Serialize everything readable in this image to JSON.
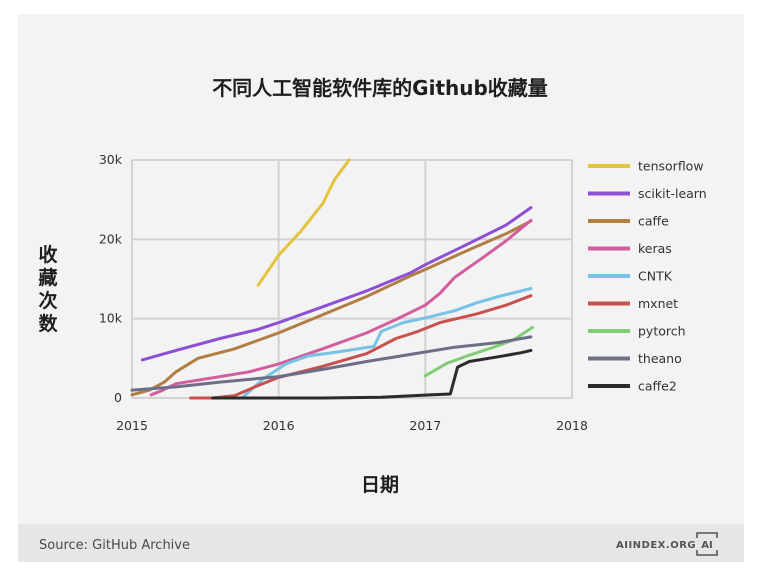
{
  "header": {
    "title": "不同人工智能软件库的Github收藏量"
  },
  "footer": {
    "source": "Source: GitHub Archive",
    "brand": "AIINDEX.ORG",
    "logo_text": "AI"
  },
  "chart_data": {
    "type": "line",
    "title": "不同人工智能软件库的Github收藏量",
    "xlabel": "日期",
    "ylabel": "收藏次数",
    "xlim": [
      2015,
      2018
    ],
    "ylim": [
      0,
      30000
    ],
    "x_ticks": [
      "2015",
      "2016",
      "2017",
      "2018"
    ],
    "y_ticks": [
      "0",
      "10k",
      "20k",
      "30k"
    ],
    "grid": true,
    "legend_position": "right",
    "series": [
      {
        "name": "tensorflow",
        "color": "#e3c43d",
        "x": [
          2015.86,
          2016.0,
          2016.15,
          2016.3,
          2016.38,
          2016.48
        ],
        "y": [
          14200,
          18000,
          21000,
          24500,
          27500,
          30000
        ]
      },
      {
        "name": "scikit-learn",
        "color": "#8d4fd6",
        "x": [
          2015.07,
          2015.3,
          2015.6,
          2015.85,
          2016.0,
          2016.3,
          2016.6,
          2016.9,
          2017.0,
          2017.3,
          2017.55,
          2017.72
        ],
        "y": [
          4800,
          6000,
          7500,
          8600,
          9500,
          11500,
          13500,
          15800,
          16800,
          19500,
          21800,
          24000
        ]
      },
      {
        "name": "caffe",
        "color": "#b07d43",
        "x": [
          2015.0,
          2015.12,
          2015.22,
          2015.3,
          2015.45,
          2015.7,
          2016.0,
          2016.3,
          2016.6,
          2016.9,
          2017.0,
          2017.3,
          2017.55,
          2017.72
        ],
        "y": [
          400,
          1000,
          2000,
          3300,
          5000,
          6200,
          8200,
          10500,
          12800,
          15400,
          16200,
          18700,
          20700,
          22300
        ]
      },
      {
        "name": "keras",
        "color": "#d35e9e",
        "x": [
          2015.13,
          2015.2,
          2015.3,
          2015.6,
          2015.8,
          2016.0,
          2016.3,
          2016.6,
          2016.8,
          2017.0,
          2017.1,
          2017.2,
          2017.4,
          2017.55,
          2017.72
        ],
        "y": [
          400,
          900,
          1800,
          2700,
          3300,
          4300,
          6200,
          8200,
          9900,
          11700,
          13200,
          15200,
          17800,
          19800,
          22400
        ]
      },
      {
        "name": "CNTK",
        "color": "#76c3e6",
        "x": [
          2015.75,
          2015.9,
          2016.05,
          2016.2,
          2016.4,
          2016.65,
          2016.7,
          2016.85,
          2017.0,
          2017.2,
          2017.35,
          2017.5,
          2017.72
        ],
        "y": [
          0,
          2500,
          4300,
          5300,
          5800,
          6500,
          8400,
          9500,
          10100,
          11000,
          12000,
          12800,
          13800
        ]
      },
      {
        "name": "mxnet",
        "color": "#c9514d",
        "x": [
          2015.4,
          2015.55,
          2015.7,
          2015.85,
          2016.0,
          2016.3,
          2016.6,
          2016.8,
          2016.95,
          2017.1,
          2017.35,
          2017.55,
          2017.72
        ],
        "y": [
          0,
          0,
          300,
          1500,
          2600,
          4000,
          5600,
          7500,
          8400,
          9500,
          10600,
          11700,
          12900
        ]
      },
      {
        "name": "pytorch",
        "color": "#7fce73",
        "x": [
          2017.0,
          2017.15,
          2017.3,
          2017.45,
          2017.6,
          2017.73
        ],
        "y": [
          2800,
          4400,
          5400,
          6300,
          7300,
          8900
        ]
      },
      {
        "name": "theano",
        "color": "#6c6f86",
        "x": [
          2015.0,
          2015.3,
          2015.6,
          2016.0,
          2016.3,
          2016.6,
          2016.9,
          2017.2,
          2017.5,
          2017.72
        ],
        "y": [
          1000,
          1400,
          2000,
          2700,
          3600,
          4600,
          5500,
          6400,
          7000,
          7700
        ]
      },
      {
        "name": "caffe2",
        "color": "#2b2b2b",
        "x": [
          2015.55,
          2016.3,
          2016.7,
          2017.05,
          2017.17,
          2017.22,
          2017.3,
          2017.5,
          2017.65,
          2017.72
        ],
        "y": [
          0,
          0,
          100,
          400,
          500,
          3900,
          4600,
          5200,
          5700,
          6000
        ]
      }
    ]
  }
}
